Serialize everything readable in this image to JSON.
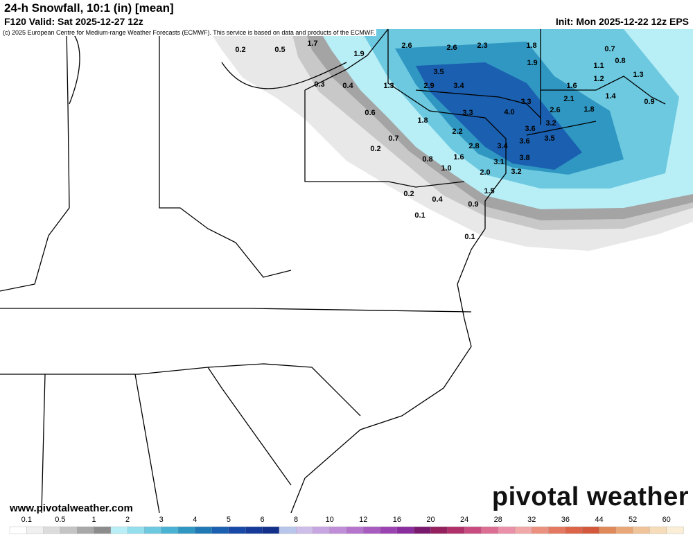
{
  "header": {
    "title": "24-h Snowfall, 10:1 (in) [mean]",
    "valid": "F120 Valid: Sat 2025-12-27 12z",
    "init": "Init: Mon 2025-12-22 12z EPS",
    "copyright": "(c) 2025 European Centre for Medium-range Weather Forecasts (ECMWF). This service is based on data and products of the ECMWF."
  },
  "map_labels": [
    "1.7",
    "0.2",
    "0.5",
    "1.9",
    "2.6",
    "2.6",
    "2.3",
    "1.8",
    "0.7",
    "1.9",
    "1.1",
    "0.8",
    "1.3",
    "3.5",
    "1.2",
    "0.3",
    "0.4",
    "1.3",
    "2.9",
    "3.4",
    "1.6",
    "2.1",
    "1.4",
    "3.3",
    "0.9",
    "0.6",
    "3.3",
    "4.0",
    "2.6",
    "1.8",
    "1.8",
    "3.6",
    "3.2",
    "2.2",
    "0.7",
    "3.5",
    "3.6",
    "0.2",
    "2.8",
    "3.4",
    "1.6",
    "3.8",
    "0.8",
    "3.1",
    "1.0",
    "3.2",
    "2.0",
    "1.5",
    "0.2",
    "0.4",
    "0.9",
    "0.1",
    "0.1"
  ],
  "colorbar": {
    "ticks": [
      0.1,
      0.5,
      1,
      2,
      3,
      4,
      5,
      6,
      8,
      10,
      12,
      16,
      20,
      24,
      28,
      32,
      36,
      44,
      52,
      60
    ],
    "colors": [
      "#ffffff",
      "#f0f0f0",
      "#dcdcdc",
      "#c4c4c4",
      "#a8a8a8",
      "#8c8c8c",
      "#b8eef6",
      "#94dfee",
      "#6cc9e0",
      "#4ab2d2",
      "#2f97c2",
      "#2079b4",
      "#1a5fb0",
      "#1848a8",
      "#153a9a",
      "#12308a",
      "#b9c6ec",
      "#cdbde9",
      "#c8a6e2",
      "#c08ed8",
      "#b575cc",
      "#a85cbf",
      "#9c43b2",
      "#8a2e9e",
      "#7a1a6e",
      "#94205e",
      "#b0306a",
      "#c84c80",
      "#dc6e94",
      "#ea90a8",
      "#f0a8a8",
      "#ec9080",
      "#e47860",
      "#dc6448",
      "#d4583c",
      "#e08a5a",
      "#eaa878",
      "#f0c498",
      "#f6dcb8",
      "#fbeed6"
    ]
  },
  "footer": {
    "website": "www.pivotalweather.com",
    "brand": "pivotal weather"
  }
}
